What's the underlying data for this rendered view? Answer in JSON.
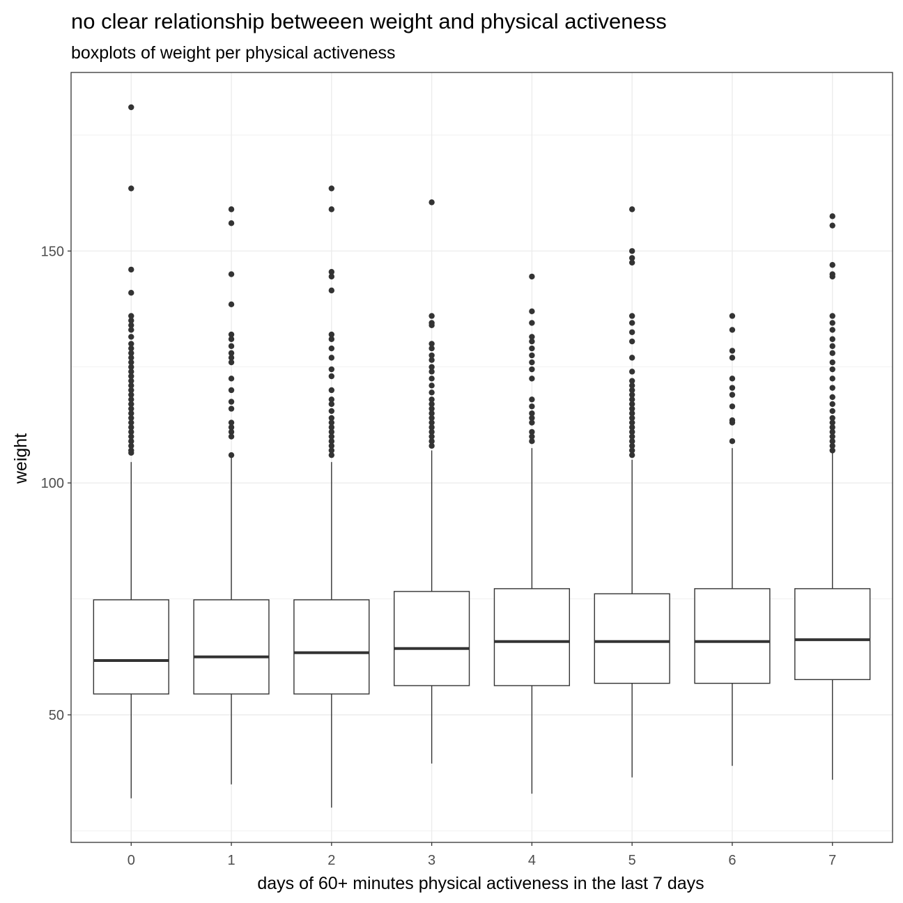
{
  "chart_data": {
    "type": "box",
    "title": "no clear relationship betweeen weight and physical activeness",
    "subtitle": "boxplots of weight per physical activeness",
    "xlabel": "days of 60+ minutes physical activeness in the last 7 days",
    "ylabel": "weight",
    "categories": [
      "0",
      "1",
      "2",
      "3",
      "4",
      "5",
      "6",
      "7"
    ],
    "y_ticks": [
      50,
      100,
      150
    ],
    "y_tick_labels": [
      "50",
      "100",
      "150"
    ],
    "ylim": [
      22.5,
      188.5
    ],
    "grid": true,
    "legend": "none",
    "colors": {
      "box": "#333333",
      "grid": "#ebebeb",
      "panel_border": "#333333",
      "background": "#ffffff"
    },
    "boxes": [
      {
        "category": "0",
        "whisker_low": 32.0,
        "q1": 54.5,
        "median": 61.7,
        "q3": 74.8,
        "whisker_high": 104.5,
        "outliers": [
          181.0,
          163.5,
          146.0,
          141.0,
          136.0,
          135.0,
          134.0,
          133.0,
          131.5,
          130.0,
          129.0,
          128.0,
          127.0,
          126.0,
          125.0,
          124.0,
          123.0,
          122.0,
          121.0,
          120.0,
          119.0,
          118.0,
          117.0,
          116.0,
          115.0,
          114.0,
          113.0,
          112.0,
          111.0,
          110.0,
          109.0,
          108.0,
          107.0,
          106.5
        ]
      },
      {
        "category": "1",
        "whisker_low": 35.0,
        "q1": 54.5,
        "median": 62.5,
        "q3": 74.8,
        "whisker_high": 105.5,
        "outliers": [
          159.0,
          156.0,
          145.0,
          138.5,
          132.0,
          131.0,
          129.5,
          128.0,
          127.0,
          126.0,
          122.5,
          120.0,
          117.5,
          116.0,
          113.0,
          112.0,
          111.0,
          110.0,
          106.0
        ]
      },
      {
        "category": "2",
        "whisker_low": 30.0,
        "q1": 54.5,
        "median": 63.4,
        "q3": 74.8,
        "whisker_high": 104.5,
        "outliers": [
          163.5,
          159.0,
          145.5,
          144.5,
          141.5,
          132.0,
          131.0,
          129.0,
          127.0,
          124.5,
          123.0,
          120.0,
          118.0,
          117.0,
          115.5,
          114.0,
          113.0,
          112.0,
          111.0,
          110.0,
          109.0,
          108.0,
          107.0,
          106.0
        ]
      },
      {
        "category": "3",
        "whisker_low": 39.5,
        "q1": 56.3,
        "median": 64.3,
        "q3": 76.6,
        "whisker_high": 107.0,
        "outliers": [
          160.5,
          136.0,
          134.5,
          134.0,
          130.0,
          129.0,
          127.5,
          126.5,
          125.0,
          124.0,
          122.5,
          121.0,
          119.5,
          118.0,
          117.0,
          116.0,
          115.0,
          114.0,
          113.0,
          112.0,
          111.0,
          110.0,
          109.0,
          108.0
        ]
      },
      {
        "category": "4",
        "whisker_low": 33.0,
        "q1": 56.3,
        "median": 65.8,
        "q3": 77.2,
        "whisker_high": 107.5,
        "outliers": [
          144.5,
          137.0,
          134.5,
          131.5,
          130.5,
          129.0,
          127.5,
          126.0,
          124.5,
          122.5,
          118.0,
          116.5,
          115.0,
          114.0,
          113.0,
          111.0,
          110.0,
          109.0
        ]
      },
      {
        "category": "5",
        "whisker_low": 36.5,
        "q1": 56.8,
        "median": 65.8,
        "q3": 76.1,
        "whisker_high": 105.0,
        "outliers": [
          159.0,
          150.0,
          148.5,
          147.5,
          136.0,
          134.5,
          132.5,
          130.5,
          127.0,
          124.0,
          122.0,
          121.0,
          120.0,
          119.0,
          118.0,
          117.0,
          116.0,
          115.0,
          114.0,
          113.0,
          112.0,
          111.0,
          110.0,
          109.0,
          108.0,
          107.0,
          106.0
        ]
      },
      {
        "category": "6",
        "whisker_low": 39.0,
        "q1": 56.8,
        "median": 65.8,
        "q3": 77.2,
        "whisker_high": 107.5,
        "outliers": [
          136.0,
          133.0,
          128.5,
          127.0,
          122.5,
          120.5,
          119.0,
          116.5,
          113.5,
          113.0,
          109.0
        ]
      },
      {
        "category": "7",
        "whisker_low": 36.0,
        "q1": 57.6,
        "median": 66.2,
        "q3": 77.2,
        "whisker_high": 106.5,
        "outliers": [
          157.5,
          155.5,
          147.0,
          145.0,
          144.5,
          136.0,
          134.5,
          133.0,
          131.0,
          129.5,
          128.0,
          126.0,
          124.5,
          122.5,
          120.5,
          118.5,
          117.0,
          115.5,
          114.0,
          113.0,
          112.0,
          111.0,
          110.0,
          109.0,
          108.0,
          107.0
        ]
      }
    ]
  }
}
